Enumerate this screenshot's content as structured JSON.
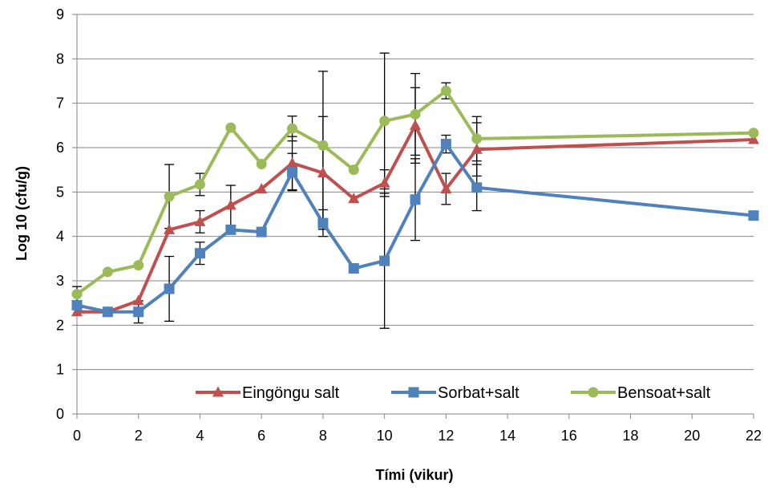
{
  "chart_data": {
    "type": "line",
    "title": "",
    "xlabel": "Tími (vikur)",
    "ylabel": "Log 10 (cfu/g)",
    "xlim": [
      0,
      22
    ],
    "ylim": [
      0,
      9
    ],
    "xticks": [
      "0",
      "2",
      "4",
      "6",
      "8",
      "10",
      "12",
      "14",
      "16",
      "18",
      "20",
      "22"
    ],
    "yticks": [
      "0",
      "1",
      "2",
      "3",
      "4",
      "5",
      "6",
      "7",
      "8",
      "9"
    ],
    "grid": "horizontal",
    "legend_position": "bottom-right inside plot",
    "series": [
      {
        "name": "Eingöngu salt",
        "color": "#c0504d",
        "marker": "triangle",
        "x": [
          0,
          1,
          2,
          3,
          4,
          5,
          6,
          7,
          8,
          9,
          10,
          11,
          12,
          13,
          22
        ],
        "y": [
          2.3,
          2.3,
          2.55,
          4.15,
          4.33,
          4.7,
          5.07,
          5.65,
          5.43,
          4.85,
          5.2,
          6.5,
          5.07,
          5.96,
          6.18
        ],
        "err": [
          0,
          0,
          0,
          0,
          0.25,
          0.45,
          0,
          0.6,
          1.27,
          0,
          0.3,
          0.85,
          0.35,
          0.6,
          0
        ]
      },
      {
        "name": "Sorbat+salt",
        "color": "#4f81bd",
        "marker": "square",
        "x": [
          0,
          1,
          2,
          3,
          4,
          5,
          6,
          7,
          8,
          9,
          10,
          11,
          12,
          13,
          22
        ],
        "y": [
          2.45,
          2.3,
          2.3,
          2.82,
          3.62,
          4.15,
          4.1,
          5.45,
          4.3,
          3.28,
          3.45,
          4.83,
          6.08,
          5.1,
          4.47
        ],
        "err": [
          0,
          0,
          0.25,
          0.73,
          0.25,
          0,
          0,
          0.42,
          0.3,
          0,
          1.52,
          0.92,
          0.2,
          0.52,
          0
        ]
      },
      {
        "name": "Bensoat+salt",
        "color": "#9bbb59",
        "marker": "circle",
        "x": [
          0,
          1,
          2,
          3,
          4,
          5,
          6,
          7,
          8,
          9,
          10,
          11,
          12,
          13,
          22
        ],
        "y": [
          2.7,
          3.2,
          3.35,
          4.9,
          5.17,
          6.45,
          5.63,
          6.43,
          6.05,
          5.5,
          6.6,
          6.75,
          7.28,
          6.2,
          6.33
        ],
        "err": [
          0.17,
          0,
          0,
          0.72,
          0.25,
          0,
          0,
          0.28,
          1.67,
          0,
          1.53,
          0.92,
          0.18,
          0.5,
          0
        ]
      }
    ]
  }
}
